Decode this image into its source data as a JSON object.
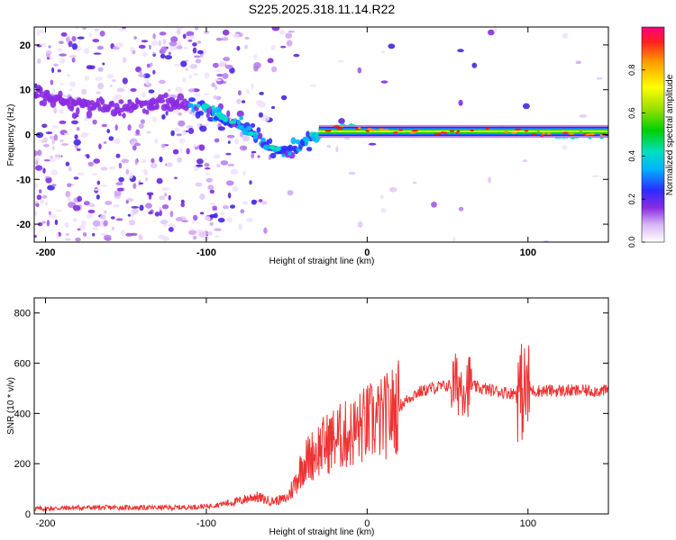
{
  "title": "S225.2025.318.11.14.R22",
  "chart_data": [
    {
      "type": "heatmap",
      "name": "spectrogram",
      "xlabel": "Height of straight line (km)",
      "ylabel": "Frequency (Hz)",
      "xlim": [
        -207,
        150
      ],
      "ylim": [
        -24,
        24
      ],
      "xticks": [
        -200,
        -100,
        0,
        100
      ],
      "yticks": [
        -20,
        -10,
        0,
        10,
        20
      ],
      "colorbar": {
        "label": "Normalized spectral amplitude",
        "range": [
          0.0,
          1.0
        ],
        "ticks": [
          0.0,
          0.2,
          0.4,
          0.6,
          0.8
        ]
      },
      "ridge": {
        "x": [
          -207,
          -180,
          -150,
          -125,
          -100,
          -85,
          -70,
          -60,
          -50,
          -40,
          -30,
          -20,
          -10,
          0,
          20,
          40,
          60,
          80,
          100,
          120,
          150
        ],
        "y": [
          9,
          7,
          6,
          7,
          6,
          3,
          0,
          -3,
          -4,
          -2,
          0,
          1.5,
          1.5,
          1,
          0.5,
          0.5,
          0.8,
          1,
          0.5,
          0,
          0
        ]
      }
    },
    {
      "type": "line",
      "name": "snr",
      "xlabel": "Height of straight line (km)",
      "ylabel": "SNR (10 * v/v)",
      "xlim": [
        -207,
        150
      ],
      "ylim": [
        0,
        860
      ],
      "xticks": [
        -200,
        -100,
        0,
        100
      ],
      "yticks": [
        0,
        200,
        400,
        600,
        800
      ],
      "color": "#ee3333",
      "series": [
        {
          "name": "SNR",
          "x": [
            -207,
            -180,
            -150,
            -120,
            -100,
            -80,
            -70,
            -60,
            -50,
            -45,
            -40,
            -30,
            -20,
            -10,
            0,
            10,
            20,
            30,
            40,
            50,
            60,
            70,
            80,
            90,
            100,
            110,
            120,
            130,
            150
          ],
          "y": [
            20,
            25,
            25,
            25,
            30,
            50,
            70,
            50,
            60,
            120,
            200,
            260,
            300,
            320,
            360,
            380,
            430,
            480,
            500,
            510,
            520,
            500,
            490,
            480,
            490,
            490,
            490,
            490,
            490
          ]
        }
      ]
    }
  ]
}
